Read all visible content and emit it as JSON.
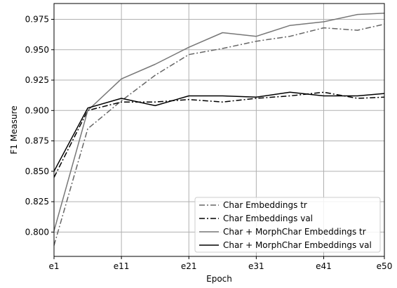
{
  "chart_data": {
    "type": "line",
    "xlabel": "Epoch",
    "ylabel": "F1 Measure",
    "x": [
      1,
      6,
      11,
      16,
      21,
      26,
      31,
      36,
      41,
      46,
      50
    ],
    "xticks": [
      1,
      11,
      21,
      31,
      41,
      50
    ],
    "xtick_labels": [
      "e1",
      "e11",
      "e21",
      "e31",
      "e41",
      "e50"
    ],
    "xlim": [
      1,
      50
    ],
    "ylim": [
      0.78,
      0.988
    ],
    "yticks": [
      0.8,
      0.825,
      0.85,
      0.875,
      0.9,
      0.925,
      0.95,
      0.975
    ],
    "ytick_labels": [
      "0.800",
      "0.825",
      "0.850",
      "0.875",
      "0.900",
      "0.925",
      "0.950",
      "0.975"
    ],
    "grid": true,
    "legend_position": "bottom-right",
    "series": [
      {
        "name": "Char Embeddings tr",
        "color": "#666666",
        "dash": "dashdot",
        "values": [
          0.789,
          0.885,
          0.908,
          0.929,
          0.946,
          0.951,
          0.957,
          0.961,
          0.968,
          0.966,
          0.971
        ]
      },
      {
        "name": "Char Embeddings val",
        "color": "#000000",
        "dash": "dashdot",
        "values": [
          0.845,
          0.9,
          0.907,
          0.907,
          0.909,
          0.907,
          0.91,
          0.912,
          0.915,
          0.91,
          0.911
        ]
      },
      {
        "name": "Char + MorphChar Embeddings tr",
        "color": "#777777",
        "dash": "solid",
        "values": [
          0.801,
          0.9,
          0.926,
          0.938,
          0.952,
          0.964,
          0.961,
          0.97,
          0.973,
          0.979,
          0.98
        ]
      },
      {
        "name": "Char + MorphChar Embeddings val",
        "color": "#000000",
        "dash": "solid",
        "values": [
          0.85,
          0.902,
          0.91,
          0.904,
          0.912,
          0.912,
          0.911,
          0.915,
          0.912,
          0.912,
          0.914
        ]
      }
    ]
  }
}
